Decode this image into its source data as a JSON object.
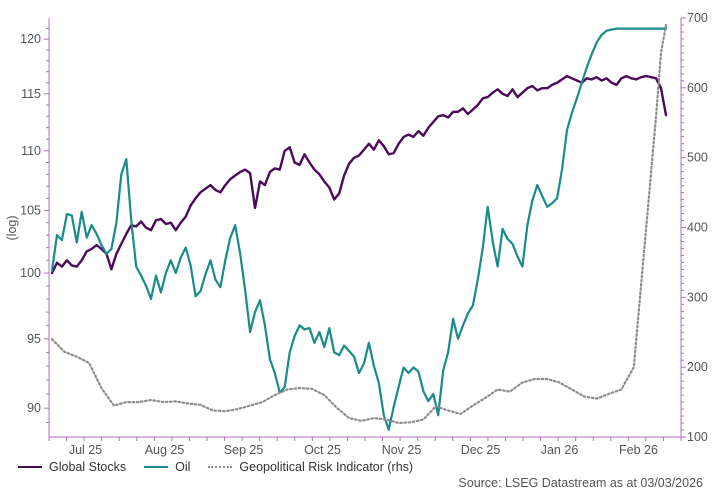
{
  "chart_data": {
    "type": "line",
    "title": "",
    "xlabel": "",
    "ylabel": "(log)",
    "y2label": "",
    "source": "Source: LSEG Datastream as at 03/03/2026",
    "x_categories": [
      "Jul 25",
      "Aug 25",
      "Sep 25",
      "Oct 25",
      "Nov 25",
      "Dec 25",
      "Jan 26",
      "Feb 26"
    ],
    "x_range": [
      0,
      248
    ],
    "ylim": [
      88,
      122
    ],
    "y_ticks": [
      90,
      95,
      100,
      105,
      110,
      115,
      120
    ],
    "y2lim": [
      100,
      700
    ],
    "y2_ticks": [
      100,
      200,
      300,
      400,
      500,
      600,
      700
    ],
    "grid": false,
    "legend_position": "bottom-left",
    "colors": {
      "stocks": "#4b0a5a",
      "oil": "#1a8a8a",
      "risk": "#8c8c8c",
      "axis": "#b070c0"
    },
    "series": [
      {
        "name": "Global Stocks",
        "axis": "left",
        "style": "solid",
        "x": [
          0,
          2,
          4,
          6,
          8,
          10,
          12,
          14,
          16,
          18,
          20,
          22,
          24,
          26,
          28,
          30,
          32,
          34,
          36,
          38,
          40,
          42,
          44,
          46,
          48,
          50,
          52,
          54,
          56,
          58,
          60,
          62,
          64,
          66,
          68,
          70,
          72,
          74,
          76,
          78,
          80,
          82,
          84,
          86,
          88,
          90,
          92,
          94,
          96,
          98,
          100,
          102,
          104,
          106,
          108,
          110,
          112,
          114,
          116,
          118,
          120,
          122,
          124,
          126,
          128,
          130,
          132,
          134,
          136,
          138,
          140,
          142,
          144,
          146,
          148,
          150,
          152,
          154,
          156,
          158,
          160,
          162,
          164,
          166,
          168,
          170,
          172,
          174,
          176,
          178,
          180,
          182,
          184,
          186,
          188,
          190,
          192,
          194,
          196,
          198,
          200,
          202,
          204,
          206,
          208,
          210,
          212,
          214,
          216,
          218,
          220,
          222,
          224,
          226,
          228,
          230,
          232,
          234,
          236,
          238,
          240,
          242,
          244,
          246,
          248
        ],
        "values": [
          100.0,
          100.8,
          100.5,
          101.0,
          100.6,
          100.5,
          101.0,
          101.7,
          101.9,
          102.2,
          101.9,
          101.5,
          100.3,
          101.5,
          102.3,
          103.1,
          103.8,
          103.7,
          104.1,
          103.6,
          103.4,
          104.2,
          104.3,
          103.9,
          104.0,
          103.4,
          104.0,
          104.5,
          105.4,
          106.0,
          106.5,
          106.8,
          107.1,
          106.7,
          106.5,
          107.1,
          107.6,
          107.9,
          108.2,
          108.4,
          108.1,
          105.2,
          107.4,
          107.1,
          108.2,
          108.5,
          108.4,
          110.0,
          110.3,
          109.0,
          108.8,
          109.7,
          109.0,
          108.4,
          108.0,
          107.4,
          106.9,
          105.9,
          106.4,
          107.9,
          108.9,
          109.4,
          109.6,
          110.1,
          110.6,
          110.1,
          110.9,
          110.4,
          109.7,
          109.8,
          110.6,
          111.2,
          111.4,
          111.2,
          111.7,
          111.3,
          112.0,
          112.5,
          113.0,
          113.1,
          112.9,
          113.4,
          113.4,
          113.7,
          113.2,
          113.6,
          114.0,
          114.6,
          114.7,
          115.1,
          115.4,
          115.0,
          114.8,
          115.4,
          114.7,
          115.1,
          115.5,
          115.7,
          115.3,
          115.5,
          115.5,
          115.8,
          116.0,
          116.3,
          116.6,
          116.4,
          116.2,
          116.0,
          116.4,
          116.3,
          116.5,
          116.2,
          116.4,
          116.0,
          115.8,
          116.4,
          116.6,
          116.4,
          116.3,
          116.5,
          116.6,
          116.5,
          116.4,
          115.5,
          113.1
        ]
      },
      {
        "name": "Oil",
        "axis": "left",
        "style": "solid",
        "x": [
          0,
          2,
          4,
          6,
          8,
          10,
          12,
          14,
          16,
          18,
          20,
          22,
          24,
          26,
          28,
          30,
          32,
          34,
          36,
          38,
          40,
          42,
          44,
          46,
          48,
          50,
          52,
          54,
          56,
          58,
          60,
          62,
          64,
          66,
          68,
          70,
          72,
          74,
          76,
          78,
          80,
          82,
          84,
          86,
          88,
          90,
          92,
          94,
          96,
          98,
          100,
          102,
          104,
          106,
          108,
          110,
          112,
          114,
          116,
          118,
          120,
          122,
          124,
          126,
          128,
          130,
          132,
          134,
          136,
          138,
          140,
          142,
          144,
          146,
          148,
          150,
          152,
          154,
          156,
          158,
          160,
          162,
          164,
          166,
          168,
          170,
          172,
          174,
          176,
          178,
          180,
          182,
          184,
          186,
          188,
          190,
          192,
          194,
          196,
          198,
          200,
          202,
          204,
          206,
          208,
          210,
          212,
          214,
          216,
          218,
          220,
          222,
          224,
          226,
          228,
          230,
          232,
          234,
          236,
          238,
          240,
          242,
          244,
          246,
          248
        ],
        "values": [
          100.2,
          103.0,
          102.6,
          104.7,
          104.6,
          102.4,
          104.9,
          102.8,
          103.8,
          103.1,
          102.2,
          101.5,
          101.9,
          104.0,
          108.0,
          109.3,
          104.2,
          100.5,
          99.8,
          99.0,
          98.0,
          99.8,
          98.5,
          100.0,
          101.0,
          100.0,
          101.2,
          102.0,
          100.6,
          98.2,
          98.6,
          99.9,
          101.0,
          99.5,
          98.9,
          101.0,
          102.8,
          103.8,
          101.5,
          98.7,
          95.5,
          97.0,
          97.9,
          96.0,
          93.5,
          92.5,
          91.1,
          91.5,
          94.0,
          95.2,
          96.0,
          95.7,
          95.8,
          94.7,
          95.5,
          94.4,
          95.8,
          94.0,
          93.8,
          94.5,
          94.1,
          93.7,
          92.5,
          93.2,
          94.7,
          93.0,
          91.8,
          89.5,
          88.5,
          90.1,
          91.5,
          92.9,
          92.5,
          92.9,
          92.6,
          91.2,
          90.5,
          91.0,
          89.5,
          92.7,
          94.0,
          96.5,
          95.0,
          96.0,
          96.9,
          97.5,
          99.5,
          102.0,
          105.3,
          102.5,
          100.5,
          103.5,
          102.7,
          102.3,
          101.3,
          100.5,
          103.8,
          105.8,
          107.1,
          106.2,
          105.3,
          105.6,
          106.0,
          108.4,
          111.8,
          113.3,
          114.6,
          116.0,
          117.4,
          118.6,
          119.7,
          120.4,
          120.8,
          120.9,
          121.0,
          121.0,
          121.0,
          121.0,
          121.0,
          121.0,
          121.0,
          121.0,
          121.0,
          121.0,
          121.0
        ]
      },
      {
        "name": "Geopolitical Risk Indicator (rhs)",
        "axis": "right",
        "style": "dotted",
        "x": [
          0,
          5,
          10,
          15,
          20,
          25,
          30,
          35,
          40,
          45,
          50,
          55,
          60,
          65,
          70,
          75,
          80,
          85,
          90,
          95,
          100,
          105,
          110,
          115,
          120,
          125,
          130,
          135,
          140,
          145,
          150,
          155,
          160,
          165,
          170,
          175,
          180,
          185,
          190,
          195,
          200,
          205,
          210,
          215,
          220,
          225,
          230,
          235,
          240,
          244,
          246,
          248
        ],
        "values": [
          240,
          222,
          215,
          206,
          170,
          145,
          150,
          150,
          153,
          150,
          151,
          148,
          146,
          138,
          137,
          140,
          145,
          150,
          160,
          168,
          170,
          169,
          160,
          142,
          127,
          123,
          127,
          125,
          120,
          121,
          125,
          144,
          138,
          133,
          145,
          156,
          168,
          165,
          178,
          183,
          183,
          178,
          168,
          158,
          155,
          162,
          168,
          200,
          400,
          560,
          650,
          690
        ]
      }
    ]
  },
  "legend": {
    "stocks_label": "Global Stocks",
    "oil_label": "Oil",
    "risk_label": "Geopolitical Risk Indicator (rhs)"
  }
}
